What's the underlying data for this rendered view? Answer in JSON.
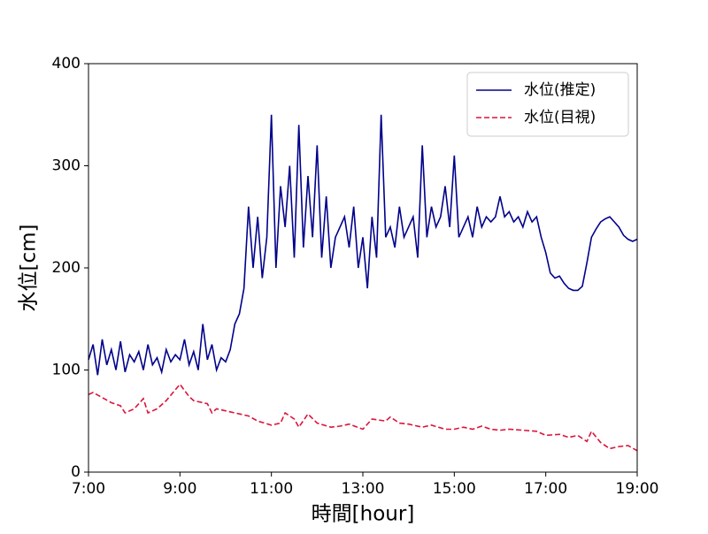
{
  "chart_data": {
    "type": "line",
    "xlabel": "時間[hour]",
    "ylabel": "水位[cm]",
    "xlim": [
      7,
      19
    ],
    "xticks": [
      {
        "value": 7,
        "label": "7:00"
      },
      {
        "value": 9,
        "label": "9:00"
      },
      {
        "value": 11,
        "label": "11:00"
      },
      {
        "value": 13,
        "label": "13:00"
      },
      {
        "value": 15,
        "label": "15:00"
      },
      {
        "value": 17,
        "label": "17:00"
      },
      {
        "value": 19,
        "label": "19:00"
      }
    ],
    "ylim": [
      0,
      400
    ],
    "yticks": [
      0,
      100,
      200,
      300,
      400
    ],
    "legend": "upper right",
    "series": [
      {
        "name": "水位(推定)",
        "color": "#00008b",
        "linestyle": "solid",
        "x": [
          7,
          7.1,
          7.2,
          7.3,
          7.4,
          7.5,
          7.6,
          7.7,
          7.8,
          7.9,
          8,
          8.1,
          8.2,
          8.3,
          8.4,
          8.5,
          8.6,
          8.7,
          8.8,
          8.9,
          9,
          9.1,
          9.2,
          9.3,
          9.4,
          9.5,
          9.6,
          9.7,
          9.8,
          9.9,
          10,
          10.1,
          10.2,
          10.3,
          10.4,
          10.5,
          10.6,
          10.7,
          10.8,
          10.9,
          11,
          11.1,
          11.2,
          11.3,
          11.4,
          11.5,
          11.6,
          11.7,
          11.8,
          11.9,
          12,
          12.1,
          12.2,
          12.3,
          12.4,
          12.5,
          12.6,
          12.7,
          12.8,
          12.9,
          13,
          13.1,
          13.2,
          13.3,
          13.4,
          13.5,
          13.6,
          13.7,
          13.8,
          13.9,
          14,
          14.1,
          14.2,
          14.3,
          14.4,
          14.5,
          14.6,
          14.7,
          14.8,
          14.9,
          15,
          15.1,
          15.2,
          15.3,
          15.4,
          15.5,
          15.6,
          15.7,
          15.8,
          15.9,
          16,
          16.1,
          16.2,
          16.3,
          16.4,
          16.5,
          16.6,
          16.7,
          16.8,
          16.9,
          17,
          17.1,
          17.2,
          17.3,
          17.4,
          17.5,
          17.6,
          17.7,
          17.8,
          17.9,
          18,
          18.1,
          18.2,
          18.3,
          18.4,
          18.5,
          18.6,
          18.7,
          18.8,
          18.9,
          19
        ],
        "values": [
          110,
          125,
          95,
          130,
          105,
          120,
          100,
          128,
          98,
          115,
          108,
          118,
          100,
          125,
          105,
          112,
          98,
          120,
          108,
          115,
          110,
          130,
          105,
          118,
          100,
          145,
          110,
          125,
          100,
          112,
          108,
          120,
          145,
          155,
          180,
          260,
          200,
          250,
          190,
          230,
          350,
          200,
          280,
          240,
          300,
          210,
          340,
          220,
          290,
          230,
          320,
          210,
          270,
          200,
          230,
          240,
          250,
          220,
          260,
          200,
          230,
          180,
          250,
          210,
          350,
          230,
          240,
          220,
          260,
          230,
          240,
          250,
          210,
          320,
          230,
          260,
          240,
          250,
          280,
          240,
          310,
          230,
          240,
          250,
          230,
          260,
          240,
          250,
          245,
          250,
          270,
          250,
          255,
          245,
          250,
          240,
          255,
          245,
          250,
          230,
          215,
          195,
          190,
          192,
          185,
          180,
          178,
          178,
          182,
          205,
          230,
          238,
          245,
          248,
          250,
          245,
          240,
          232,
          228,
          226,
          228
        ]
      },
      {
        "name": "水位(目視)",
        "color": "#dc143c",
        "linestyle": "dashed",
        "x": [
          7,
          7.1,
          7.3,
          7.5,
          7.7,
          7.8,
          8,
          8.2,
          8.3,
          8.5,
          8.7,
          9,
          9.2,
          9.3,
          9.5,
          9.6,
          9.7,
          9.8,
          10,
          10.3,
          10.5,
          10.7,
          11,
          11.2,
          11.3,
          11.5,
          11.6,
          11.8,
          12,
          12.3,
          12.5,
          12.7,
          13,
          13.2,
          13.5,
          13.6,
          13.8,
          14,
          14.3,
          14.5,
          14.8,
          15,
          15.2,
          15.4,
          15.6,
          15.8,
          16,
          16.2,
          16.5,
          16.8,
          17,
          17.3,
          17.5,
          17.7,
          17.9,
          18,
          18.2,
          18.4,
          18.6,
          18.8,
          19
        ],
        "values": [
          76,
          78,
          73,
          68,
          65,
          58,
          62,
          72,
          58,
          62,
          70,
          86,
          74,
          70,
          68,
          67,
          58,
          62,
          60,
          57,
          55,
          50,
          46,
          48,
          58,
          52,
          44,
          57,
          48,
          44,
          45,
          47,
          42,
          52,
          50,
          54,
          48,
          47,
          44,
          46,
          42,
          42,
          44,
          42,
          45,
          42,
          41,
          42,
          41,
          40,
          36,
          37,
          34,
          36,
          30,
          40,
          29,
          23,
          25,
          26,
          21
        ]
      }
    ]
  }
}
